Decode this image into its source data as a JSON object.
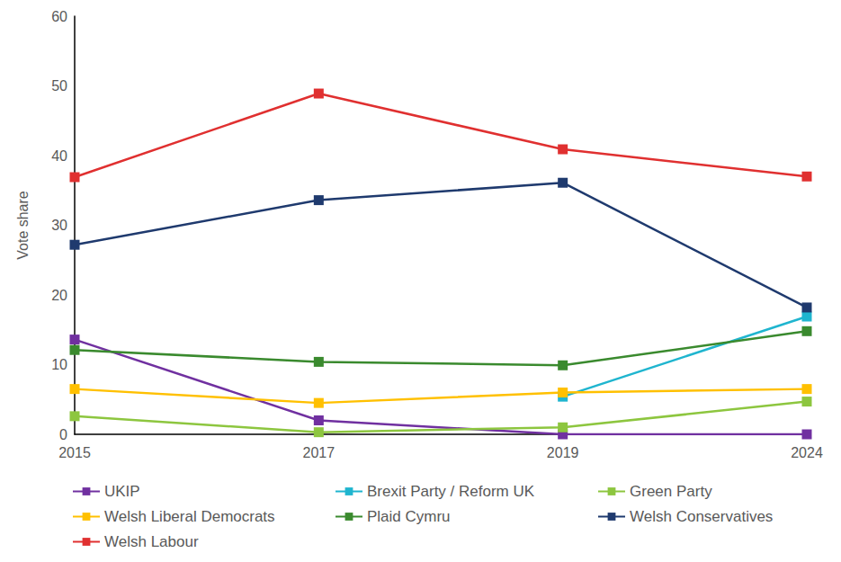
{
  "chart_data": {
    "type": "line",
    "y_label": "Vote share",
    "categories": [
      "2015",
      "2017",
      "2019",
      "2024"
    ],
    "ylim": [
      0,
      60
    ],
    "yticks": [
      0,
      10,
      20,
      30,
      40,
      50,
      60
    ],
    "grid": false,
    "legend": "bottom",
    "marker": "square",
    "series": [
      {
        "name": "UKIP",
        "color": "#7030a0",
        "values": [
          13.6,
          2.0,
          0,
          0
        ]
      },
      {
        "name": "Brexit Party / Reform UK",
        "color": "#1fb5cf",
        "values": [
          null,
          null,
          5.4,
          16.9
        ]
      },
      {
        "name": "Green Party",
        "color": "#8dc63f",
        "values": [
          2.6,
          0.3,
          1.0,
          4.7
        ]
      },
      {
        "name": "Welsh Liberal Democrats",
        "color": "#ffc000",
        "values": [
          6.5,
          4.5,
          6.0,
          6.5
        ]
      },
      {
        "name": "Plaid Cymru",
        "color": "#3a8a2e",
        "values": [
          12.1,
          10.4,
          9.9,
          14.8
        ]
      },
      {
        "name": "Welsh Conservatives",
        "color": "#1f3a6e",
        "values": [
          27.2,
          33.6,
          36.1,
          18.2
        ]
      },
      {
        "name": "Welsh Labour",
        "color": "#e03030",
        "values": [
          36.9,
          48.9,
          40.9,
          37.0
        ]
      }
    ]
  }
}
